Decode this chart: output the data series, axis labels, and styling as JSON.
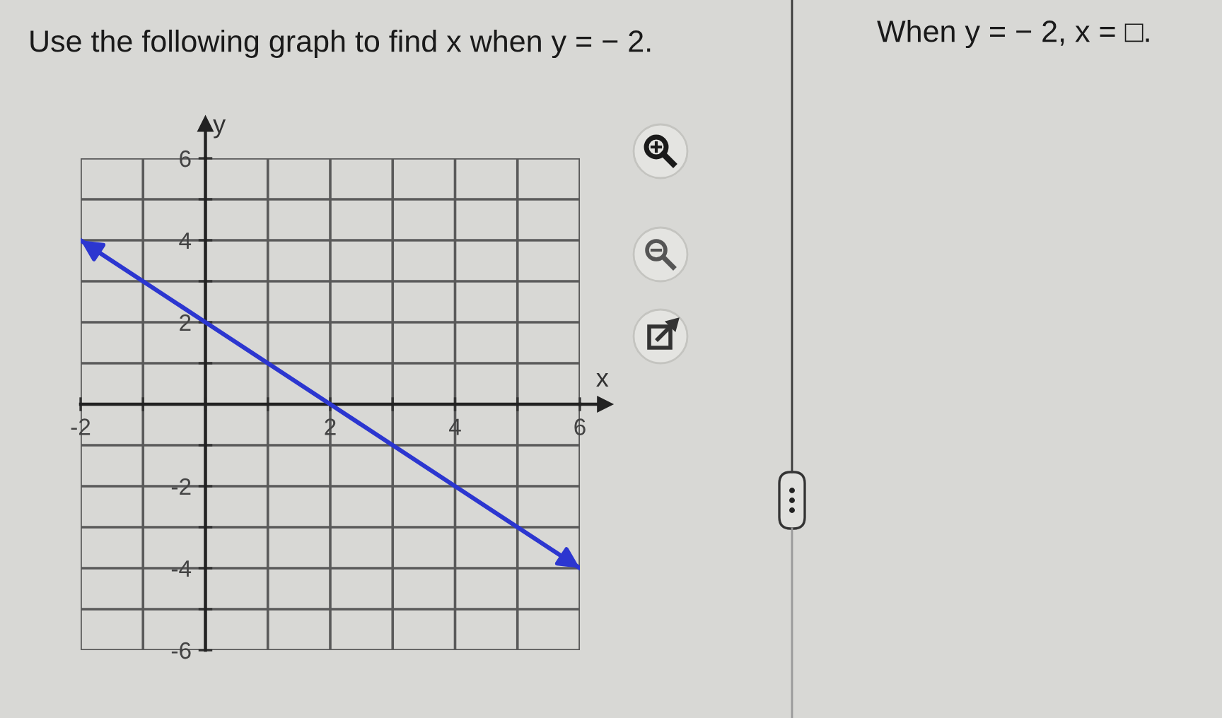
{
  "chart_data": {
    "type": "line",
    "title": "Use the following graph to find x when y = − 2.",
    "xlabel": "x",
    "ylabel": "y",
    "x": [
      -2,
      0,
      2,
      4,
      6
    ],
    "series": [
      {
        "color": "#2c36d0",
        "values": [
          4,
          2,
          0,
          -2,
          -4
        ]
      }
    ],
    "xlim": [
      -2,
      6
    ],
    "ylim": [
      -6,
      6
    ],
    "xticks": [
      -2,
      {
        "value": -1,
        "label": null
      },
      {
        "value": 0,
        "label": null
      },
      {
        "value": 1,
        "label": null
      },
      2,
      {
        "value": 3,
        "label": null
      },
      4,
      {
        "value": 5,
        "label": null
      },
      6
    ],
    "yticks": [
      -6,
      {
        "value": -5,
        "label": null
      },
      -4,
      {
        "value": -3,
        "label": null
      },
      -2,
      {
        "value": -1,
        "label": null
      },
      {
        "value": 0,
        "label": null
      },
      {
        "value": 1,
        "label": null
      },
      2,
      {
        "value": 3,
        "label": null
      },
      4,
      {
        "value": 5,
        "label": null
      },
      6
    ],
    "grid": true,
    "annotations": [
      "When y = − 2, x = □."
    ]
  }
}
